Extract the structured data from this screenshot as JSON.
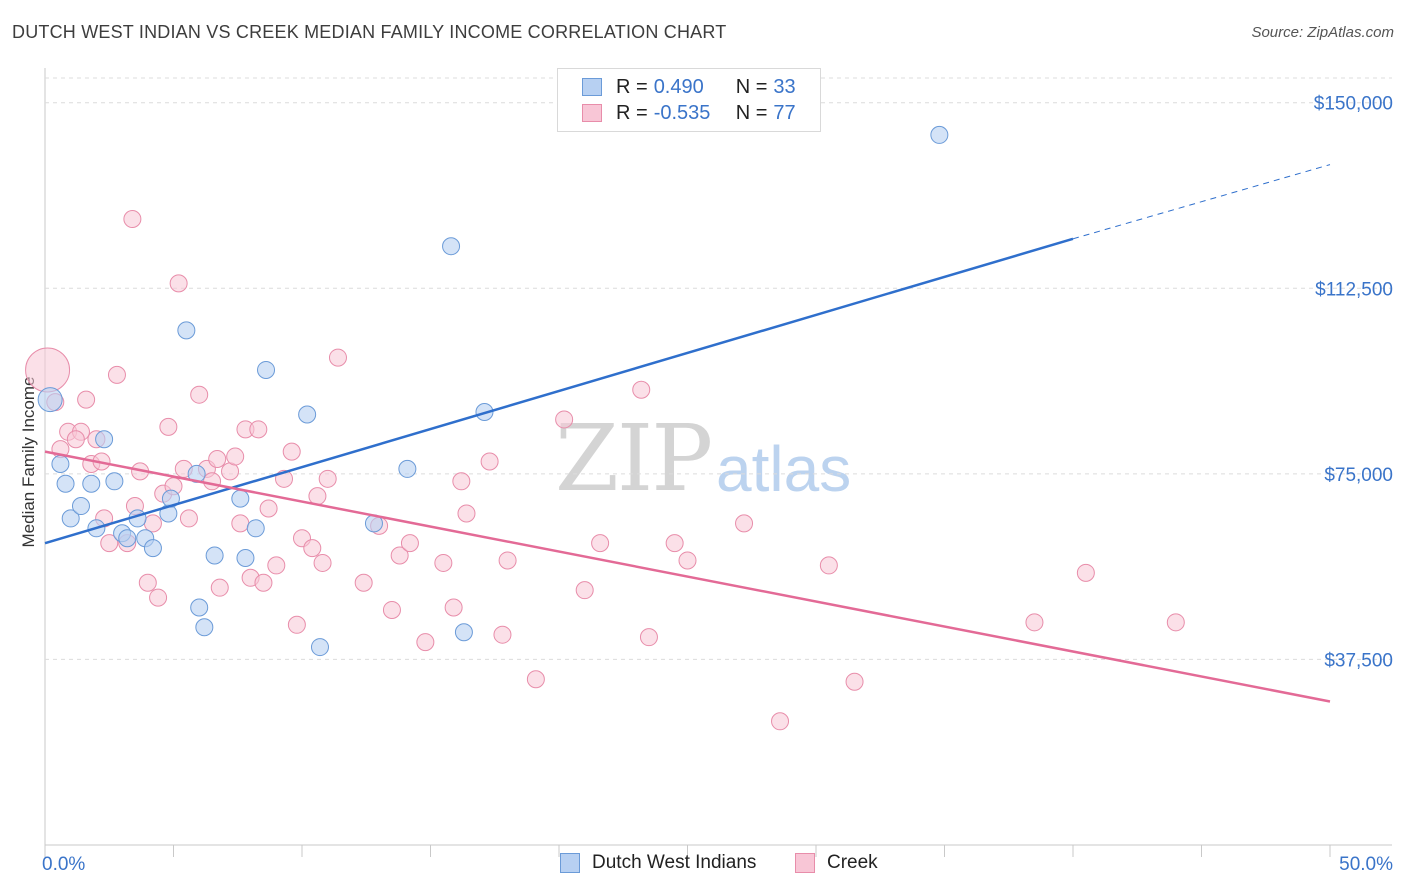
{
  "title": "DUTCH WEST INDIAN VS CREEK MEDIAN FAMILY INCOME CORRELATION CHART",
  "source": "Source: ZipAtlas.com",
  "watermark": {
    "zip": "ZIP",
    "atlas": "atlas"
  },
  "legend": {
    "rows": [
      {
        "r_label": "R =",
        "r_value": "0.490",
        "n_label": "N =",
        "n_value": "33"
      },
      {
        "r_label": "R =",
        "r_value": "-0.535",
        "n_label": "N =",
        "n_value": "77"
      }
    ]
  },
  "bottom_legend": [
    "Dutch West Indians",
    "Creek"
  ],
  "colors": {
    "series1_fill": "#b7d0f2",
    "series1_stroke": "#6b9bd8",
    "series1_line": "#2f6fcc",
    "series2_fill": "#f8c6d6",
    "series2_stroke": "#e88daa",
    "series2_line": "#e36a96",
    "tick_text": "#3a74c9"
  },
  "chart_data": {
    "type": "scatter",
    "title": "DUTCH WEST INDIAN VS CREEK MEDIAN FAMILY INCOME CORRELATION CHART",
    "xlabel": "",
    "ylabel": "Median Family Income",
    "xlim": [
      0,
      50
    ],
    "ylim": [
      0,
      150000
    ],
    "x_tick_labels": [
      "0.0%",
      "50.0%"
    ],
    "y_ticks": [
      37500,
      75000,
      112500,
      150000
    ],
    "y_tick_labels": [
      "$37,500",
      "$75,000",
      "$112,500",
      "$150,000"
    ],
    "grid": true,
    "series": [
      {
        "name": "Dutch West Indians",
        "points": [
          [
            0.2,
            90000
          ],
          [
            0.6,
            77000
          ],
          [
            0.8,
            73000
          ],
          [
            1.0,
            66000
          ],
          [
            1.4,
            68500
          ],
          [
            1.8,
            73000
          ],
          [
            2.0,
            64000
          ],
          [
            2.3,
            82000
          ],
          [
            2.7,
            73500
          ],
          [
            3.0,
            63000
          ],
          [
            3.2,
            62000
          ],
          [
            3.6,
            66000
          ],
          [
            3.9,
            62000
          ],
          [
            4.2,
            60000
          ],
          [
            4.8,
            67000
          ],
          [
            4.9,
            70000
          ],
          [
            5.5,
            104000
          ],
          [
            5.9,
            75000
          ],
          [
            6.0,
            48000
          ],
          [
            6.2,
            44000
          ],
          [
            6.6,
            58500
          ],
          [
            7.6,
            70000
          ],
          [
            7.8,
            58000
          ],
          [
            8.2,
            64000
          ],
          [
            8.6,
            96000
          ],
          [
            10.2,
            87000
          ],
          [
            10.7,
            40000
          ],
          [
            12.8,
            65000
          ],
          [
            14.1,
            76000
          ],
          [
            15.8,
            121000
          ],
          [
            16.3,
            43000
          ],
          [
            17.1,
            87500
          ],
          [
            34.8,
            143500
          ]
        ]
      },
      {
        "name": "Creek",
        "points": [
          [
            0.1,
            96000
          ],
          [
            0.4,
            89500
          ],
          [
            0.6,
            80000
          ],
          [
            0.9,
            83500
          ],
          [
            1.4,
            83500
          ],
          [
            1.6,
            90000
          ],
          [
            1.8,
            77000
          ],
          [
            2.0,
            82000
          ],
          [
            2.2,
            77500
          ],
          [
            2.3,
            66000
          ],
          [
            2.5,
            61000
          ],
          [
            2.8,
            95000
          ],
          [
            3.2,
            61000
          ],
          [
            3.5,
            68500
          ],
          [
            3.7,
            75500
          ],
          [
            4.0,
            53000
          ],
          [
            4.2,
            65000
          ],
          [
            4.4,
            50000
          ],
          [
            4.6,
            71000
          ],
          [
            4.8,
            84500
          ],
          [
            5.0,
            72500
          ],
          [
            5.2,
            113500
          ],
          [
            5.4,
            76000
          ],
          [
            5.6,
            66000
          ],
          [
            6.0,
            91000
          ],
          [
            6.3,
            76000
          ],
          [
            6.5,
            73500
          ],
          [
            6.7,
            78000
          ],
          [
            6.8,
            52000
          ],
          [
            7.2,
            75500
          ],
          [
            7.4,
            78500
          ],
          [
            7.6,
            65000
          ],
          [
            7.8,
            84000
          ],
          [
            8.0,
            54000
          ],
          [
            8.3,
            84000
          ],
          [
            8.5,
            53000
          ],
          [
            8.7,
            68000
          ],
          [
            9.0,
            56500
          ],
          [
            9.3,
            74000
          ],
          [
            9.6,
            79500
          ],
          [
            9.8,
            44500
          ],
          [
            10.0,
            62000
          ],
          [
            10.4,
            60000
          ],
          [
            10.6,
            70500
          ],
          [
            10.8,
            57000
          ],
          [
            11.0,
            74000
          ],
          [
            11.4,
            98500
          ],
          [
            12.4,
            53000
          ],
          [
            13.0,
            64500
          ],
          [
            13.5,
            47500
          ],
          [
            13.8,
            58500
          ],
          [
            14.2,
            61000
          ],
          [
            14.8,
            41000
          ],
          [
            15.5,
            57000
          ],
          [
            15.9,
            48000
          ],
          [
            16.2,
            73500
          ],
          [
            16.4,
            67000
          ],
          [
            17.3,
            77500
          ],
          [
            17.8,
            42500
          ],
          [
            18.0,
            57500
          ],
          [
            19.1,
            33500
          ],
          [
            20.2,
            86000
          ],
          [
            21.0,
            51500
          ],
          [
            21.6,
            61000
          ],
          [
            23.2,
            92000
          ],
          [
            23.5,
            42000
          ],
          [
            24.5,
            61000
          ],
          [
            25.0,
            57500
          ],
          [
            27.2,
            65000
          ],
          [
            28.6,
            25000
          ],
          [
            30.5,
            56500
          ],
          [
            31.5,
            33000
          ],
          [
            38.5,
            45000
          ],
          [
            40.5,
            55000
          ],
          [
            44.0,
            45000
          ],
          [
            3.4,
            126500
          ],
          [
            1.2,
            82000
          ]
        ]
      }
    ],
    "trend_lines": [
      {
        "series": "Dutch West Indians",
        "x_solid": [
          0,
          40
        ],
        "y_solid": [
          61000,
          122500
        ],
        "x_dashed_end": 50,
        "y_dashed_end": 137500
      },
      {
        "series": "Creek",
        "x": [
          0,
          50
        ],
        "y": [
          79500,
          29000
        ]
      }
    ]
  }
}
